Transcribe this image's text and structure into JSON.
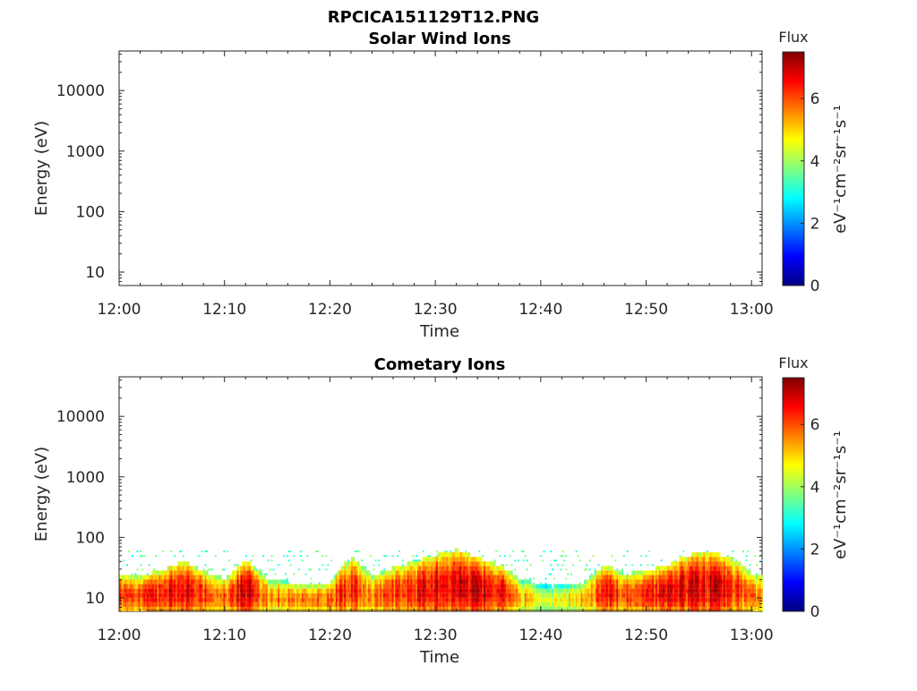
{
  "figure": {
    "title": "RPCICA151129T12.PNG"
  },
  "chart_data": [
    {
      "type": "heatmap",
      "title": "Solar Wind Ions",
      "xlabel": "Time",
      "ylabel": "Energy (eV)",
      "x_ticks": [
        "12:00",
        "12:10",
        "12:20",
        "12:30",
        "12:40",
        "12:50",
        "13:00"
      ],
      "xlim": [
        "12:00",
        "13:01"
      ],
      "y_scale": "log",
      "ylim": [
        6,
        45000
      ],
      "y_ticks": [
        {
          "value": 10,
          "label": "10"
        },
        {
          "value": 100,
          "label": "100"
        },
        {
          "value": 1000,
          "label": "1000"
        },
        {
          "value": 10000,
          "label": "10000"
        }
      ],
      "colorbar": {
        "title": "Flux",
        "label": "eV⁻¹cm⁻²sr⁻¹s⁻¹",
        "range": [
          0,
          7.5
        ],
        "ticks": [
          "0",
          "2",
          "4",
          "6"
        ],
        "colormap": "jet"
      },
      "data": []
    },
    {
      "type": "heatmap",
      "title": "Cometary Ions",
      "xlabel": "Time",
      "ylabel": "Energy (eV)",
      "x_ticks": [
        "12:00",
        "12:10",
        "12:20",
        "12:30",
        "12:40",
        "12:50",
        "13:00"
      ],
      "xlim": [
        "12:00",
        "13:01"
      ],
      "y_scale": "log",
      "ylim": [
        6,
        45000
      ],
      "y_ticks": [
        {
          "value": 10,
          "label": "10"
        },
        {
          "value": 100,
          "label": "100"
        },
        {
          "value": 1000,
          "label": "1000"
        },
        {
          "value": 10000,
          "label": "10000"
        }
      ],
      "colorbar": {
        "title": "Flux",
        "label": "eV⁻¹cm⁻²sr⁻¹s⁻¹",
        "range": [
          0,
          7.5
        ],
        "ticks": [
          "0",
          "2",
          "4",
          "6"
        ],
        "colormap": "jet"
      },
      "flux_profile": {
        "time": [
          "12:00",
          "12:02",
          "12:04",
          "12:06",
          "12:08",
          "12:10",
          "12:12",
          "12:14",
          "12:16",
          "12:18",
          "12:20",
          "12:22",
          "12:24",
          "12:26",
          "12:28",
          "12:30",
          "12:32",
          "12:34",
          "12:36",
          "12:38",
          "12:40",
          "12:42",
          "12:44",
          "12:46",
          "12:48",
          "12:50",
          "12:52",
          "12:54",
          "12:56",
          "12:58",
          "13:00"
        ],
        "peak_flux": [
          6.2,
          6.0,
          6.5,
          6.6,
          6.2,
          6.0,
          7.0,
          5.5,
          5.8,
          5.6,
          6.0,
          6.4,
          5.6,
          6.3,
          6.4,
          6.9,
          6.8,
          7.0,
          6.6,
          5.2,
          4.6,
          4.6,
          5.2,
          6.6,
          6.0,
          6.5,
          6.6,
          6.8,
          6.9,
          6.4,
          5.6
        ],
        "max_energy_eV": [
          22,
          20,
          25,
          35,
          24,
          18,
          35,
          18,
          16,
          15,
          16,
          40,
          20,
          28,
          35,
          45,
          55,
          40,
          30,
          18,
          14,
          14,
          16,
          30,
          22,
          25,
          30,
          45,
          50,
          40,
          22
        ]
      }
    }
  ]
}
